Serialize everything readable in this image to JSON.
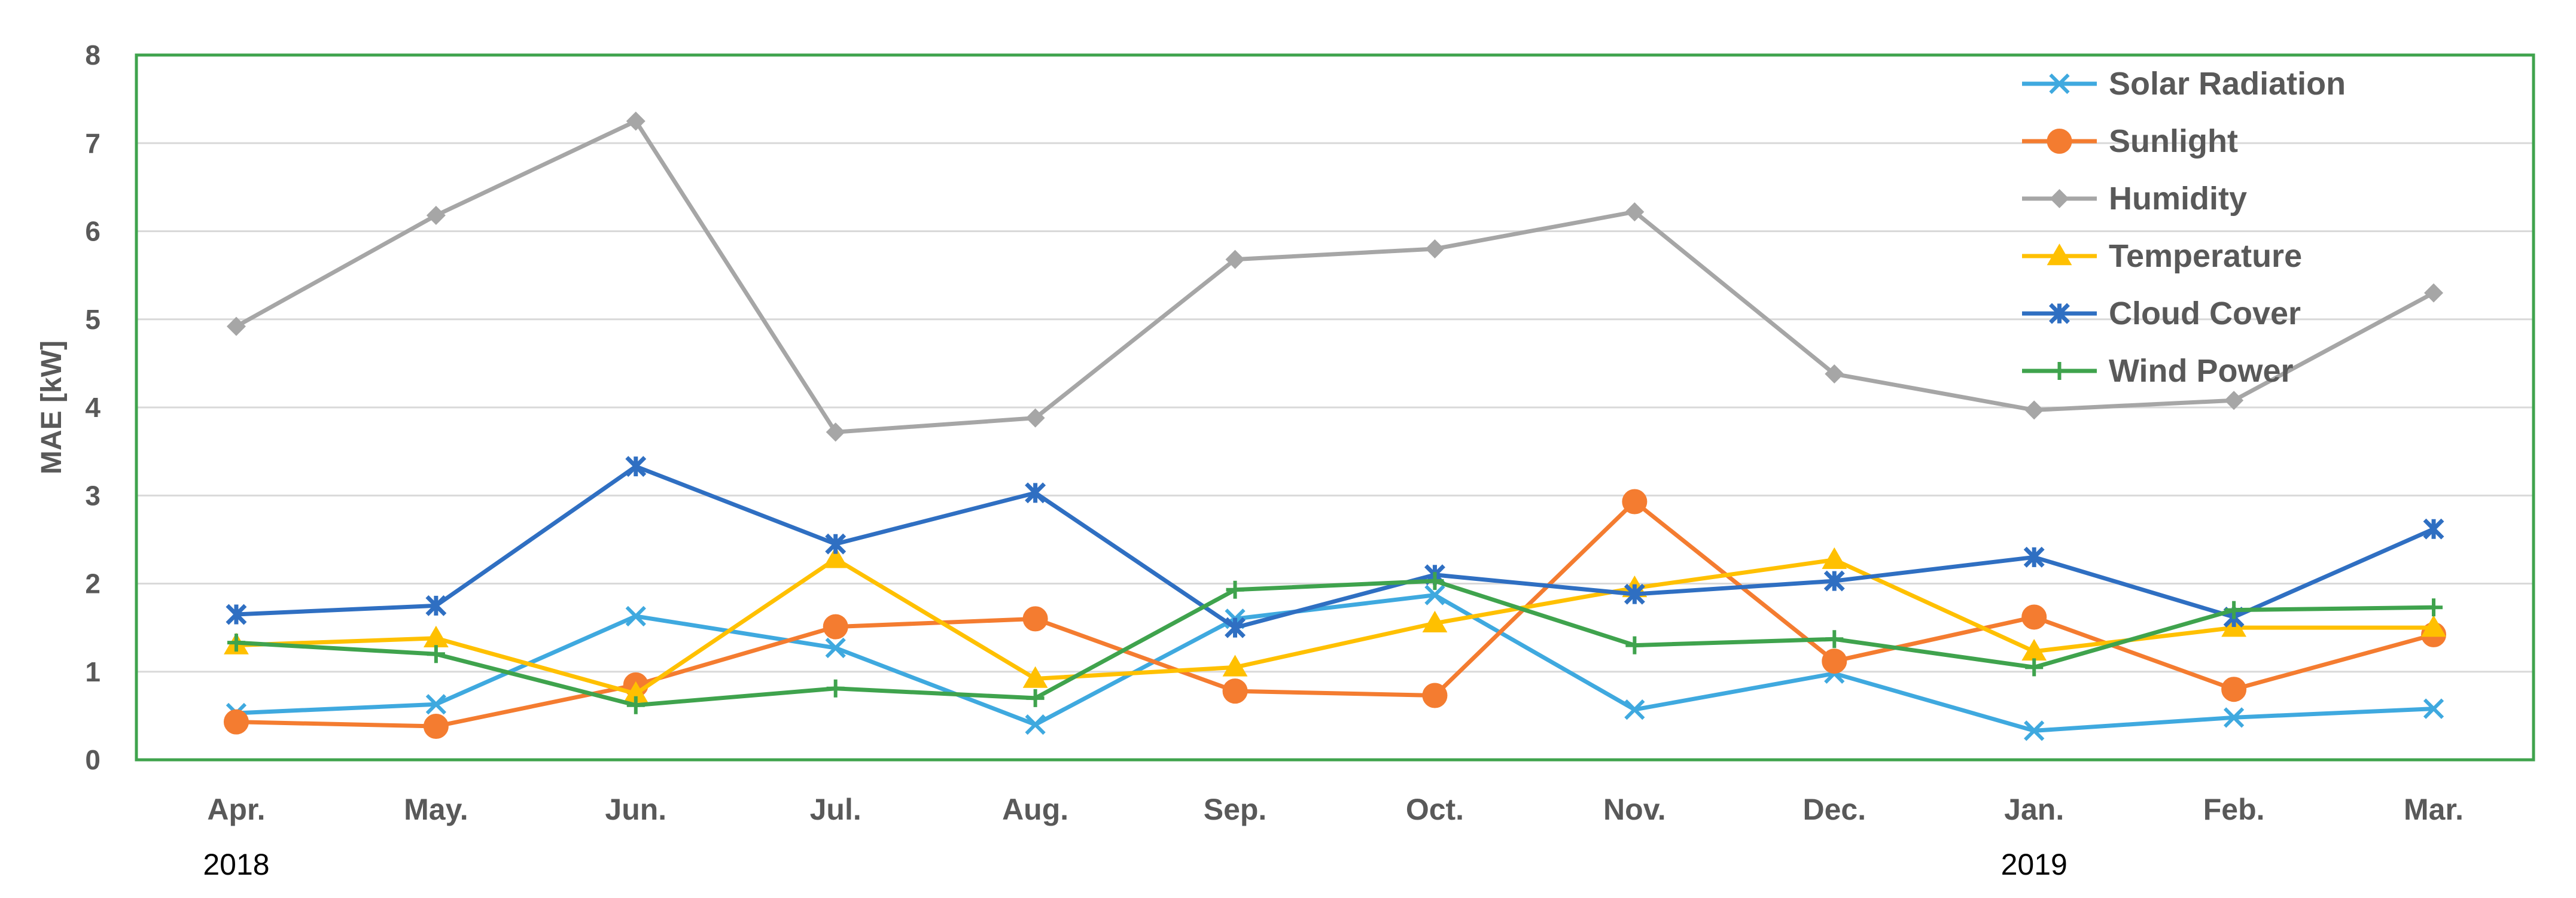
{
  "chart_data": {
    "type": "line",
    "ylabel": "MAE [kW]",
    "ylim": [
      0,
      8
    ],
    "yticks": [
      "0",
      "1",
      "2",
      "3",
      "4",
      "5",
      "6",
      "7",
      "8"
    ],
    "categories": [
      "Apr.",
      "May.",
      "Jun.",
      "Jul.",
      "Aug.",
      "Sep.",
      "Oct.",
      "Nov.",
      "Dec.",
      "Jan.",
      "Feb.",
      "Mar."
    ],
    "year_labels": [
      {
        "label": "2018",
        "category_index": 0
      },
      {
        "label": "2019",
        "category_index": 9
      }
    ],
    "grid": true,
    "legend_position": "top-right",
    "series": [
      {
        "name": "Solar Radiation",
        "color": "#3fa9df",
        "marker": "x",
        "values": [
          0.53,
          0.63,
          1.63,
          1.27,
          0.4,
          1.6,
          1.87,
          0.57,
          0.98,
          0.33,
          0.48,
          0.58
        ]
      },
      {
        "name": "Sunlight",
        "color": "#f47c30",
        "marker": "circle",
        "values": [
          0.43,
          0.38,
          0.85,
          1.51,
          1.6,
          0.78,
          0.73,
          2.93,
          1.12,
          1.62,
          0.8,
          1.42
        ]
      },
      {
        "name": "Humidity",
        "color": "#a6a6a6",
        "marker": "diamond",
        "values": [
          4.92,
          6.18,
          7.25,
          3.72,
          3.88,
          5.68,
          5.8,
          6.22,
          4.38,
          3.97,
          4.08,
          5.3
        ]
      },
      {
        "name": "Temperature",
        "color": "#ffc000",
        "marker": "triangle",
        "values": [
          1.3,
          1.38,
          0.75,
          2.28,
          0.92,
          1.05,
          1.55,
          1.95,
          2.27,
          1.23,
          1.5,
          1.5
        ]
      },
      {
        "name": "Cloud Cover",
        "color": "#2f6fc2",
        "marker": "star",
        "values": [
          1.65,
          1.75,
          3.33,
          2.45,
          3.03,
          1.5,
          2.1,
          1.88,
          2.03,
          2.3,
          1.62,
          2.62
        ]
      },
      {
        "name": "Wind Power",
        "color": "#3fa34d",
        "marker": "plus",
        "values": [
          1.33,
          1.2,
          0.62,
          0.81,
          0.7,
          1.93,
          2.03,
          1.3,
          1.37,
          1.05,
          1.7,
          1.73
        ]
      }
    ]
  }
}
